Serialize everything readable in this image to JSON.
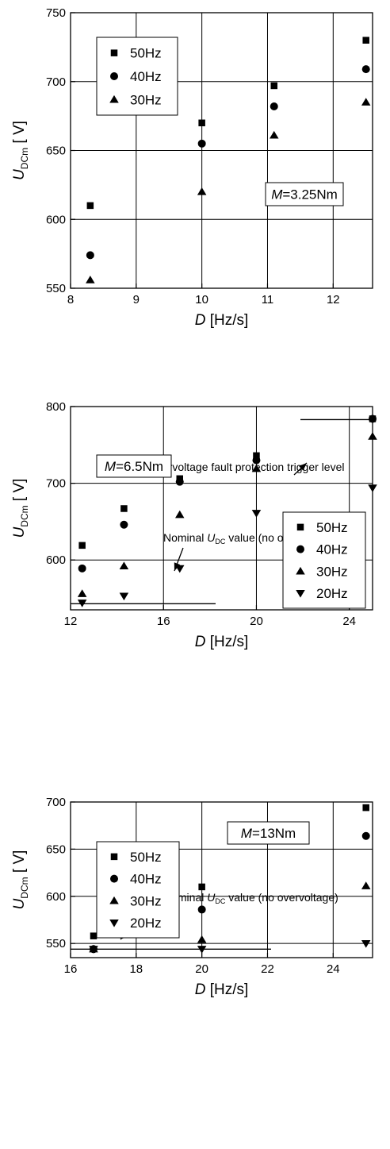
{
  "chart_data": [
    {
      "type": "scatter",
      "ylabel": {
        "main": "U",
        "sub": "DCm",
        "unit": " [ V]"
      },
      "xlabel": {
        "main": "D",
        "unit": " [Hz/s]"
      },
      "xlim": [
        8,
        12.6
      ],
      "ylim": [
        550,
        750
      ],
      "xticks": [
        8,
        9,
        10,
        11,
        12
      ],
      "yticks": [
        550,
        600,
        650,
        700,
        750
      ],
      "grid": true,
      "legend_position": "top-left",
      "annotation": {
        "italic": "M",
        "rest": "=3.25Nm"
      },
      "series": [
        {
          "name": "50Hz",
          "marker": "square",
          "x": [
            8.3,
            10.0,
            11.1,
            12.5
          ],
          "y": [
            610,
            670,
            697,
            730
          ]
        },
        {
          "name": "40Hz",
          "marker": "circle",
          "x": [
            8.3,
            10.0,
            11.1,
            12.5
          ],
          "y": [
            574,
            655,
            682,
            709
          ]
        },
        {
          "name": "30Hz",
          "marker": "triangle-up",
          "x": [
            8.3,
            10.0,
            11.1,
            12.5
          ],
          "y": [
            556,
            620,
            661,
            685
          ]
        }
      ]
    },
    {
      "type": "scatter",
      "ylabel": {
        "main": "U",
        "sub": "DCm",
        "unit": " [ V]"
      },
      "xlabel": {
        "main": "D",
        "unit": " [Hz/s]"
      },
      "xlim": [
        12,
        25
      ],
      "ylim": [
        535,
        800
      ],
      "xticks": [
        12,
        16,
        20,
        24
      ],
      "yticks": [
        600,
        700,
        800
      ],
      "grid": true,
      "legend_position": "middle-right",
      "annotation": {
        "italic": "M",
        "rest": "=6.5Nm"
      },
      "overvoltage_label": "Overvoltage fault protection trigger level",
      "overvoltage_level": 783,
      "nominal_label": {
        "pre": "Nominal ",
        "italic": "U",
        "sub": "DC",
        "post": " value (no overvoltage)"
      },
      "nominal_level": 543,
      "series": [
        {
          "name": "50Hz",
          "marker": "square",
          "x": [
            12.5,
            14.3,
            16.7,
            20.0,
            25.0
          ],
          "y": [
            619,
            667,
            706,
            736,
            784
          ]
        },
        {
          "name": "40Hz",
          "marker": "circle",
          "x": [
            12.5,
            14.3,
            16.7,
            20.0,
            25.0
          ],
          "y": [
            589,
            646,
            702,
            730,
            784
          ]
        },
        {
          "name": "30Hz",
          "marker": "triangle-up",
          "x": [
            12.5,
            14.3,
            16.7,
            20.0,
            25.0
          ],
          "y": [
            556,
            592,
            659,
            719,
            761
          ]
        },
        {
          "name": "20Hz",
          "marker": "triangle-down",
          "x": [
            12.5,
            14.3,
            16.7,
            20.0,
            25.0
          ],
          "y": [
            544,
            553,
            589,
            661,
            694
          ]
        }
      ]
    },
    {
      "type": "scatter",
      "ylabel": {
        "main": "U",
        "sub": "DCm",
        "unit": " [ V]"
      },
      "xlabel": {
        "main": "D",
        "unit": " [Hz/s]"
      },
      "xlim": [
        16,
        25.2
      ],
      "ylim": [
        535,
        700
      ],
      "xticks": [
        16,
        18,
        20,
        22,
        24
      ],
      "yticks": [
        550,
        600,
        650,
        700
      ],
      "grid": true,
      "legend_position": "top-left",
      "annotation": {
        "italic": "M",
        "rest": "=13Nm"
      },
      "nominal_label": {
        "pre": "Nominal ",
        "italic": "U",
        "sub": "DC",
        "post": " value (no overvoltage)"
      },
      "nominal_level": 544,
      "series": [
        {
          "name": "50Hz",
          "marker": "square",
          "x": [
            16.7,
            20.0,
            25.0
          ],
          "y": [
            558,
            610,
            694
          ]
        },
        {
          "name": "40Hz",
          "marker": "circle",
          "x": [
            16.7,
            20.0,
            25.0
          ],
          "y": [
            544,
            586,
            664
          ]
        },
        {
          "name": "30Hz",
          "marker": "triangle-up",
          "x": [
            16.7,
            20.0,
            25.0
          ],
          "y": [
            544,
            554,
            611
          ]
        },
        {
          "name": "20Hz",
          "marker": "triangle-down",
          "x": [
            16.7,
            20.0,
            25.0
          ],
          "y": [
            544,
            544,
            550
          ]
        }
      ]
    }
  ]
}
